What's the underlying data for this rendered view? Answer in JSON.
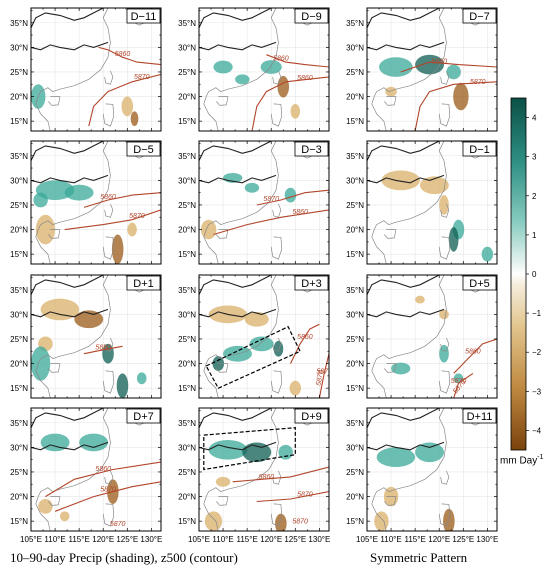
{
  "chart_data": {
    "type": "heatmap",
    "panels": [
      "D−11",
      "D−9",
      "D−7",
      "D−5",
      "D−3",
      "D−1",
      "D+1",
      "D+3",
      "D+5",
      "D+7",
      "D+9",
      "D+11"
    ],
    "xticks": [
      "105°E",
      "110°E",
      "115°E",
      "120°E",
      "125°E",
      "130°E"
    ],
    "yticks": [
      "35°N",
      "30°N",
      "25°N",
      "20°N",
      "15°N"
    ],
    "xlim": [
      105,
      132
    ],
    "ylim": [
      13,
      38
    ],
    "contour_labels": [
      "5860",
      "5870"
    ],
    "colorbar": {
      "ticks": [
        "4",
        "3",
        "2",
        "1",
        "0",
        "−1",
        "−2",
        "−3",
        "−4"
      ],
      "tick_values": [
        4,
        3,
        2,
        1,
        0,
        -1,
        -2,
        -3,
        -4
      ],
      "range": [
        -4.5,
        4.5
      ],
      "unit": "mm Day",
      "unit_exp": "-1"
    },
    "captions": {
      "left": "10–90-day Precip (shading), z500 (contour)",
      "right": "Symmetric Pattern"
    },
    "colors": {
      "wet": "#3aa898",
      "wet_dark": "#0e5e52",
      "dry": "#d9b06a",
      "dry_dark": "#9a5a18",
      "contour": "#b2452a",
      "coast": "#888888",
      "basin": "#222222"
    }
  }
}
